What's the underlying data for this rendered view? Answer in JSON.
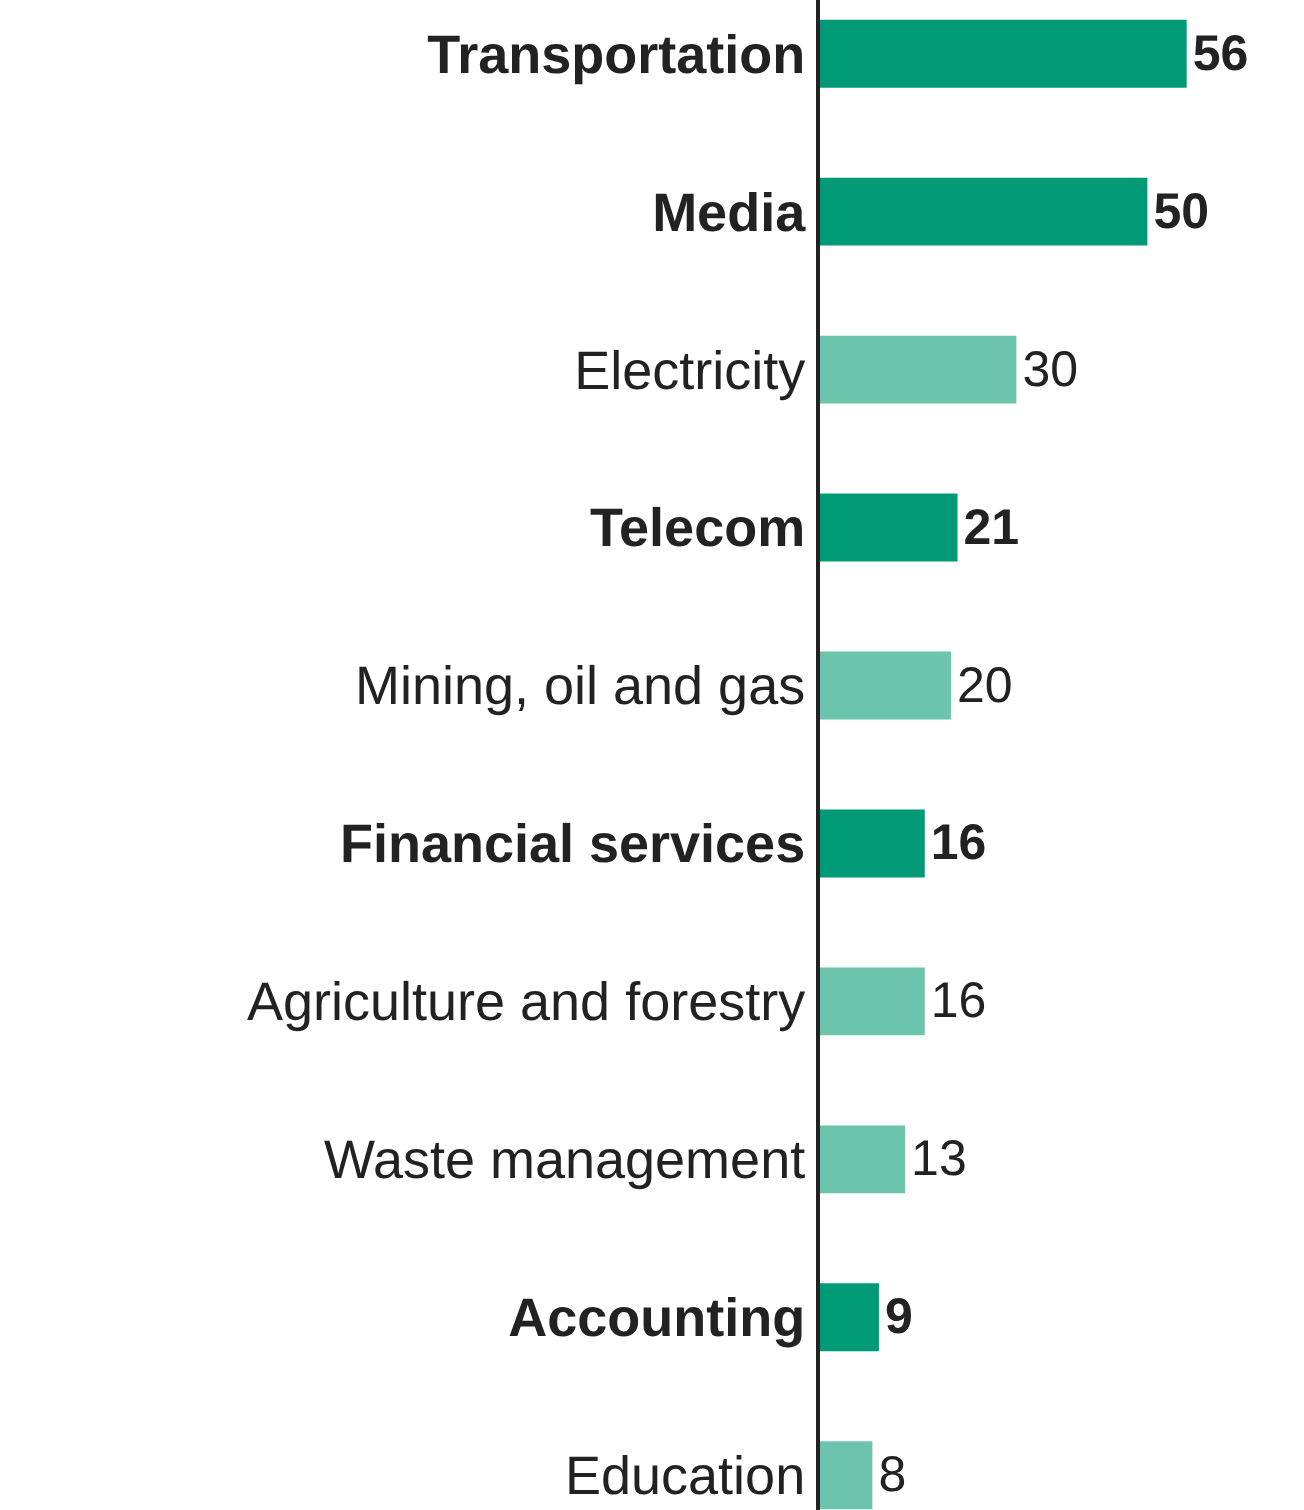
{
  "chart_data": {
    "type": "bar",
    "orientation": "horizontal",
    "categories": [
      "Transportation",
      "Media",
      "Electricity",
      "Telecom",
      "Mining, oil and gas",
      "Financial services",
      "Agriculture and forestry",
      "Waste management",
      "Accounting",
      "Education"
    ],
    "values": [
      56,
      50,
      30,
      21,
      20,
      16,
      16,
      13,
      9,
      8
    ],
    "colors": [
      "#009a77",
      "#009a77",
      "#6cc4ac",
      "#009a77",
      "#6cc4ac",
      "#009a77",
      "#6cc4ac",
      "#6cc4ac",
      "#009a77",
      "#6cc4ac"
    ],
    "data_labels": true,
    "grid": false,
    "legend": false
  }
}
